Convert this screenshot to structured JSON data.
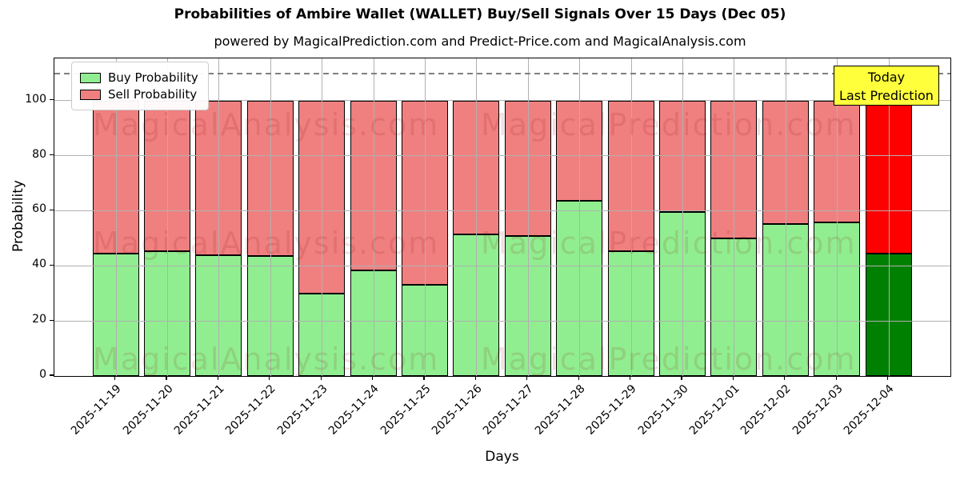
{
  "title": "Probabilities of Ambire Wallet (WALLET) Buy/Sell Signals Over 15 Days (Dec 05)",
  "subtitle": "powered by MagicalPrediction.com and Predict-Price.com and MagicalAnalysis.com",
  "legend": {
    "buy_label": "Buy Probability",
    "sell_label": "Sell Probability"
  },
  "annotation_box": {
    "line1": "Today",
    "line2": "Last Prediction",
    "bg_color": "#ffff3c"
  },
  "watermarks": [
    "MagicalAnalysis.com",
    "MagicalPrediction.com"
  ],
  "colors": {
    "buy_fill": "#90ee90",
    "sell_fill": "#f08080",
    "last_buy_fill": "#008000",
    "last_sell_fill": "#ff0000",
    "bar_edge": "#000000",
    "grid": "#b0b0b0",
    "dashed_line": "#7f7f7f",
    "watermark": "rgba(139,0,0,0.12)"
  },
  "chart_data": {
    "type": "bar",
    "stacked": true,
    "title": "Probabilities of Ambire Wallet (WALLET) Buy/Sell Signals Over 15 Days (Dec 05)",
    "xlabel": "Days",
    "ylabel": "Probability",
    "categories": [
      "2025-11-19",
      "2025-11-20",
      "2025-11-21",
      "2025-11-22",
      "2025-11-23",
      "2025-11-24",
      "2025-11-25",
      "2025-11-26",
      "2025-11-27",
      "2025-11-28",
      "2025-11-29",
      "2025-11-30",
      "2025-12-01",
      "2025-12-02",
      "2025-12-03",
      "2025-12-04"
    ],
    "series": [
      {
        "name": "Buy Probability",
        "color": "#90ee90",
        "values": [
          44.3,
          45.3,
          44.0,
          43.5,
          30.0,
          38.3,
          33.2,
          51.5,
          50.8,
          63.5,
          45.3,
          59.5,
          50.0,
          55.3,
          55.7,
          44.3
        ]
      },
      {
        "name": "Sell Probability",
        "color": "#f08080",
        "values": [
          55.7,
          54.7,
          56.0,
          56.5,
          70.0,
          61.7,
          66.8,
          48.5,
          49.2,
          36.5,
          54.7,
          40.5,
          50.0,
          44.7,
          44.3,
          55.7
        ]
      }
    ],
    "highlighted_last_bar": {
      "category": "2025-12-04",
      "buy_color": "#008000",
      "sell_color": "#ff0000"
    },
    "yticks": [
      0,
      20,
      40,
      60,
      80,
      100
    ],
    "ylim": [
      0,
      115.3
    ],
    "dashed_line_y": 110,
    "grid": true,
    "legend_position": "upper left"
  }
}
